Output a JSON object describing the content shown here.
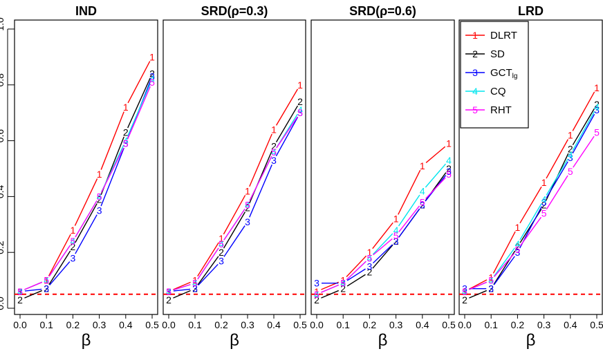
{
  "chart_data": {
    "type": "line",
    "panels": [
      {
        "title": "IND",
        "series": [
          {
            "marker": "1",
            "values": [
              0.06,
              0.1,
              0.28,
              0.48,
              0.72,
              0.9
            ]
          },
          {
            "marker": "2",
            "values": [
              0.03,
              0.07,
              0.22,
              0.39,
              0.63,
              0.84
            ]
          },
          {
            "marker": "3",
            "values": [
              0.06,
              0.07,
              0.18,
              0.35,
              0.59,
              0.83
            ]
          },
          {
            "marker": "4",
            "values": [
              0.06,
              0.1,
              0.24,
              0.4,
              0.6,
              0.82
            ]
          },
          {
            "marker": "5",
            "values": [
              0.06,
              0.1,
              0.24,
              0.4,
              0.59,
              0.81
            ]
          }
        ]
      },
      {
        "title": "SRD(ρ=0.3)",
        "series": [
          {
            "marker": "1",
            "values": [
              0.06,
              0.1,
              0.25,
              0.42,
              0.64,
              0.8
            ]
          },
          {
            "marker": "2",
            "values": [
              0.03,
              0.07,
              0.2,
              0.36,
              0.58,
              0.74
            ]
          },
          {
            "marker": "3",
            "values": [
              0.06,
              0.07,
              0.17,
              0.31,
              0.53,
              0.7
            ]
          },
          {
            "marker": "4",
            "values": [
              0.06,
              0.09,
              0.23,
              0.37,
              0.56,
              0.71
            ]
          },
          {
            "marker": "5",
            "values": [
              0.06,
              0.09,
              0.23,
              0.37,
              0.56,
              0.7
            ]
          }
        ]
      },
      {
        "title": "SRD(ρ=0.6)",
        "series": [
          {
            "marker": "1",
            "values": [
              0.06,
              0.1,
              0.2,
              0.32,
              0.51,
              0.59
            ]
          },
          {
            "marker": "2",
            "values": [
              0.03,
              0.07,
              0.13,
              0.24,
              0.37,
              0.5
            ]
          },
          {
            "marker": "3",
            "values": [
              0.09,
              0.09,
              0.15,
              0.24,
              0.37,
              0.49
            ]
          },
          {
            "marker": "4",
            "values": [
              0.05,
              0.09,
              0.18,
              0.28,
              0.42,
              0.53
            ]
          },
          {
            "marker": "5",
            "values": [
              0.05,
              0.09,
              0.18,
              0.26,
              0.38,
              0.48
            ]
          }
        ]
      },
      {
        "title": "LRD",
        "series": [
          {
            "marker": "1",
            "values": [
              0.06,
              0.11,
              0.29,
              0.45,
              0.62,
              0.79
            ]
          },
          {
            "marker": "2",
            "values": [
              0.03,
              0.07,
              0.22,
              0.37,
              0.57,
              0.73
            ]
          },
          {
            "marker": "3",
            "values": [
              0.07,
              0.07,
              0.2,
              0.38,
              0.54,
              0.71
            ]
          },
          {
            "marker": "4",
            "values": [
              0.06,
              0.1,
              0.23,
              0.39,
              0.55,
              0.72
            ]
          },
          {
            "marker": "5",
            "values": [
              0.06,
              0.1,
              0.21,
              0.34,
              0.49,
              0.63
            ]
          }
        ]
      }
    ],
    "x": [
      0.0,
      0.1,
      0.2,
      0.3,
      0.4,
      0.5
    ],
    "x_ticks": [
      "0.0",
      "0.1",
      "0.2",
      "0.3",
      "0.4",
      "0.5"
    ],
    "xlabel": "β",
    "xlim": [
      0.0,
      0.5
    ],
    "ylim": [
      0.0,
      1.0
    ],
    "y_ticks": [
      "0.0",
      "0.2",
      "0.4",
      "0.6",
      "0.8",
      "1.0"
    ],
    "reference_line": {
      "y": 0.05,
      "style": "dashed",
      "color": "#ff0000"
    },
    "legend": {
      "panel": 4,
      "placement": "top-left",
      "entries": [
        {
          "marker": "1",
          "label": "DLRT",
          "color": "#ff0000"
        },
        {
          "marker": "2",
          "label": "SD",
          "color": "#000000"
        },
        {
          "marker": "3",
          "label": "GCT",
          "sub": "lg",
          "color": "#0000ff"
        },
        {
          "marker": "4",
          "label": "CQ",
          "color": "#00e5ee"
        },
        {
          "marker": "5",
          "label": "RHT",
          "color": "#ff00ff"
        }
      ]
    }
  }
}
